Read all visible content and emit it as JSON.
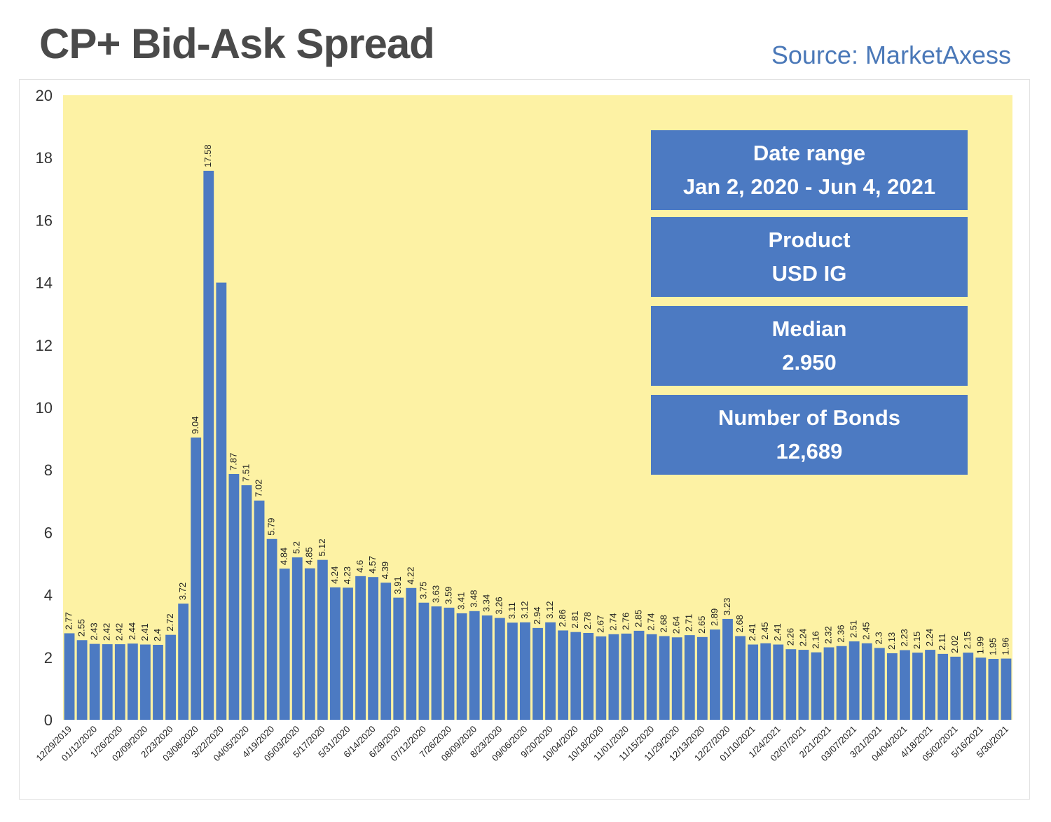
{
  "title": "CP+ Bid-Ask Spread",
  "source": "Source: MarketAxess",
  "info_boxes": [
    {
      "label": "Date range",
      "value": "Jan 2, 2020 - Jun 4, 2021"
    },
    {
      "label": "Product",
      "value": "USD IG"
    },
    {
      "label": "Median",
      "value": "2.950"
    },
    {
      "label": "Number of Bonds",
      "value": "12,689"
    }
  ],
  "colors": {
    "bar": "#4c7ac2",
    "plot_background": "#fdf2a4",
    "title": "#4a4a4a",
    "source": "#4a78b8"
  },
  "chart_data": {
    "type": "bar",
    "title": "CP+ Bid-Ask Spread",
    "xlabel": "",
    "ylabel": "",
    "ylim": [
      0,
      20
    ],
    "yticks": [
      0,
      2,
      4,
      6,
      8,
      10,
      12,
      14,
      16,
      18,
      20
    ],
    "grid": false,
    "legend": "none",
    "x_tick_labels": [
      "12/29/2019",
      "01/12/2020",
      "1/26/2020",
      "02/09/2020",
      "2/23/2020",
      "03/08/2020",
      "3/22/2020",
      "04/05/2020",
      "4/19/2020",
      "05/03/2020",
      "5/17/2020",
      "5/31/2020",
      "6/14/2020",
      "6/28/2020",
      "07/12/2020",
      "7/26/2020",
      "08/09/2020",
      "8/23/2020",
      "09/06/2020",
      "9/20/2020",
      "10/04/2020",
      "10/18/2020",
      "11/01/2020",
      "11/15/2020",
      "11/29/2020",
      "12/13/2020",
      "12/27/2020",
      "01/10/2021",
      "1/24/2021",
      "02/07/2021",
      "2/21/2021",
      "03/07/2021",
      "3/21/2021",
      "04/04/2021",
      "4/18/2021",
      "05/02/2021",
      "5/16/2021",
      "5/30/2021"
    ],
    "values": [
      2.77,
      2.55,
      2.43,
      2.42,
      2.42,
      2.44,
      2.41,
      2.4,
      2.72,
      3.72,
      9.04,
      17.58,
      14,
      7.87,
      7.51,
      7.02,
      5.79,
      4.84,
      5.2,
      4.85,
      5.12,
      4.24,
      4.23,
      4.6,
      4.57,
      4.39,
      3.91,
      4.22,
      3.75,
      3.63,
      3.59,
      3.41,
      3.48,
      3.34,
      3.26,
      3.11,
      3.12,
      2.94,
      3.12,
      2.86,
      2.81,
      2.78,
      2.67,
      2.74,
      2.76,
      2.85,
      2.74,
      2.68,
      2.64,
      2.71,
      2.65,
      2.89,
      3.23,
      2.68,
      2.41,
      2.45,
      2.41,
      2.26,
      2.24,
      2.16,
      2.32,
      2.36,
      2.51,
      2.45,
      2.3,
      2.13,
      2.23,
      2.15,
      2.24,
      2.11,
      2.02,
      2.15,
      1.99,
      1.95,
      1.96
    ],
    "data_labels": [
      "2.77",
      "2.55",
      "2.43",
      "2.42",
      "2.42",
      "2.44",
      "2.41",
      "2.4",
      "2.72",
      "3.72",
      "9.04",
      "17.58",
      "",
      "7.87",
      "7.51",
      "7.02",
      "5.79",
      "4.84",
      "5.2",
      "4.85",
      "5.12",
      "4.24",
      "4.23",
      "4.6",
      "4.57",
      "4.39",
      "3.91",
      "4.22",
      "3.75",
      "3.63",
      "3.59",
      "3.41",
      "3.48",
      "3.34",
      "3.26",
      "3.11",
      "3.12",
      "2.94",
      "3.12",
      "2.86",
      "2.81",
      "2.78",
      "2.67",
      "2.74",
      "2.76",
      "2.85",
      "2.74",
      "2.68",
      "2.64",
      "2.71",
      "2.65",
      "2.89",
      "3.23",
      "2.68",
      "2.41",
      "2.45",
      "2.41",
      "2.26",
      "2.24",
      "2.16",
      "2.32",
      "2.36",
      "2.51",
      "2.45",
      "2.3",
      "2.13",
      "2.23",
      "2.15",
      "2.24",
      "2.11",
      "2.02",
      "2.15",
      "1.99",
      "1.95",
      "1.96"
    ]
  }
}
